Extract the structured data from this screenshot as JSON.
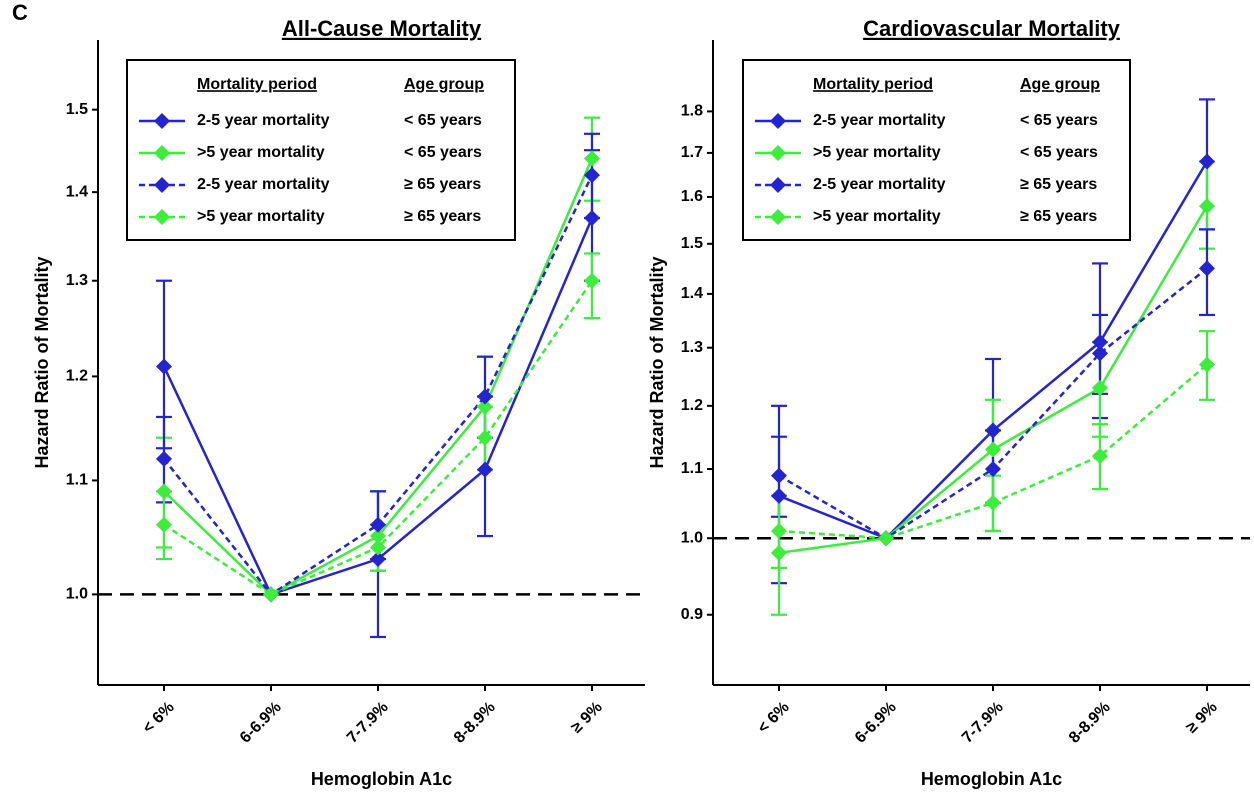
{
  "panel_label": "C",
  "chart_data": [
    {
      "type": "line",
      "title": "All-Cause Mortality",
      "x_label": "Hemoglobin A1c",
      "y_label": "Hazard Ratio of Mortality",
      "categories": [
        "< 6%",
        "6-6.9%",
        "7-7.9%",
        "8-8.9%",
        "≥ 9%"
      ],
      "ylog": true,
      "ylim": [
        0.927,
        1.59
      ],
      "yticks": [
        {
          "value": 1,
          "label": "1.0"
        },
        1.1,
        1.2,
        1.3,
        1.4,
        1.5
      ],
      "reference_line": 1,
      "legend_headers": [
        "Mortality period",
        "Age group"
      ],
      "series": [
        {
          "name": "2-5 year mortality",
          "age_group": "< 65 years",
          "color": "#2424d0",
          "dashed": false,
          "values": [
            1.21,
            1.0,
            1.03,
            1.11,
            1.37
          ],
          "lower": [
            1.13,
            null,
            0.965,
            1.05,
            1.3
          ],
          "upper": [
            1.3,
            null,
            1.09,
            1.18,
            1.45
          ]
        },
        {
          "name": ">5 year mortality",
          "age_group": "< 65 years",
          "color": "#3ced3c",
          "dashed": false,
          "values": [
            1.09,
            1.0,
            1.05,
            1.17,
            1.44
          ],
          "lower": [
            1.04,
            null,
            1.02,
            1.11,
            1.39
          ],
          "upper": [
            1.14,
            null,
            1.09,
            1.22,
            1.49
          ]
        },
        {
          "name": "2-5 year mortality",
          "age_group": "≥ 65 years",
          "color": "#2424d0",
          "dashed": true,
          "values": [
            1.12,
            1.0,
            1.06,
            1.18,
            1.42
          ],
          "lower": [
            1.08,
            null,
            1.03,
            1.14,
            1.37
          ],
          "upper": [
            1.16,
            null,
            1.09,
            1.22,
            1.47
          ]
        },
        {
          "name": ">5 year mortality",
          "age_group": "≥ 65 years",
          "color": "#3ced3c",
          "dashed": true,
          "values": [
            1.06,
            1.0,
            1.04,
            1.14,
            1.3
          ],
          "lower": [
            1.03,
            null,
            1.02,
            1.11,
            1.26
          ],
          "upper": [
            1.09,
            null,
            1.06,
            1.17,
            1.33
          ]
        }
      ]
    },
    {
      "type": "line",
      "title": "Cardiovascular Mortality",
      "x_label": "Hemoglobin A1c",
      "y_label": "Hazard Ratio of Mortality",
      "categories": [
        "< 6%",
        "6-6.9%",
        "7-7.9%",
        "8-8.9%",
        "≥ 9%"
      ],
      "ylog": true,
      "ylim": [
        0.817,
        1.986
      ],
      "yticks": [
        0.9,
        {
          "value": 1,
          "label": "1.0"
        },
        1.1,
        1.2,
        1.3,
        1.4,
        1.5,
        1.6,
        1.7,
        1.8
      ],
      "reference_line": 1,
      "legend_headers": [
        "Mortality period",
        "Age group"
      ],
      "series": [
        {
          "name": "2-5 year mortality",
          "age_group": "< 65 years",
          "color": "#2424d0",
          "dashed": false,
          "values": [
            1.06,
            1.0,
            1.16,
            1.31,
            1.68
          ],
          "lower": [
            0.94,
            null,
            1.05,
            1.18,
            1.53
          ],
          "upper": [
            1.2,
            null,
            1.28,
            1.46,
            1.83
          ]
        },
        {
          "name": ">5 year mortality",
          "age_group": "< 65 years",
          "color": "#3ced3c",
          "dashed": false,
          "values": [
            0.98,
            1.0,
            1.13,
            1.23,
            1.58
          ],
          "lower": [
            0.9,
            null,
            1.05,
            1.15,
            1.49
          ],
          "upper": [
            1.06,
            null,
            1.21,
            1.31,
            1.68
          ]
        },
        {
          "name": "2-5 year mortality",
          "age_group": "≥ 65 years",
          "color": "#2424d0",
          "dashed": true,
          "values": [
            1.09,
            1.0,
            1.1,
            1.29,
            1.45
          ],
          "lower": [
            1.03,
            null,
            1.01,
            1.22,
            1.36
          ],
          "upper": [
            1.15,
            null,
            1.16,
            1.36,
            1.53
          ]
        },
        {
          "name": ">5 year mortality",
          "age_group": "≥ 65 years",
          "color": "#3ced3c",
          "dashed": true,
          "values": [
            1.01,
            1.0,
            1.05,
            1.12,
            1.27
          ],
          "lower": [
            0.96,
            null,
            1.01,
            1.07,
            1.21
          ],
          "upper": [
            1.06,
            null,
            1.09,
            1.17,
            1.33
          ]
        }
      ]
    }
  ]
}
